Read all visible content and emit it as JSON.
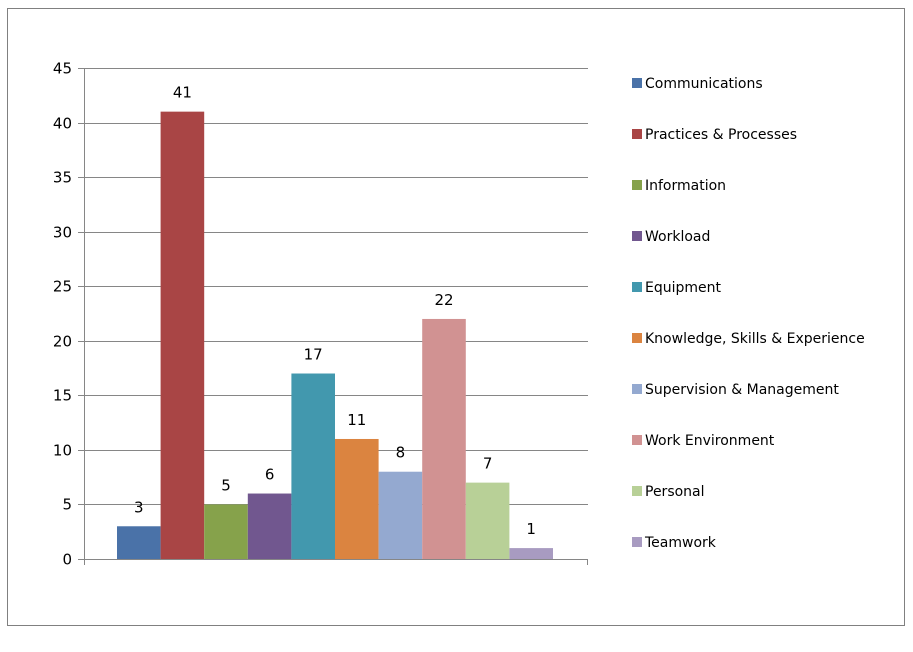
{
  "chart_data": {
    "type": "bar",
    "categories": [
      "Communications",
      "Practices & Processes",
      "Information",
      "Workload",
      "Equipment",
      "Knowledge, Skills & Experience",
      "Supervision & Management",
      "Work Environment",
      "Personal",
      "Teamwork"
    ],
    "values": [
      3,
      41,
      5,
      6,
      17,
      11,
      8,
      22,
      7,
      1
    ],
    "colors": [
      "#4a72a8",
      "#a94545",
      "#86a24b",
      "#71578f",
      "#4298ae",
      "#db8440",
      "#94a9d0",
      "#d19292",
      "#b8d097",
      "#a89bc1"
    ],
    "title": "",
    "xlabel": "",
    "ylabel": "",
    "ylim": [
      0,
      45
    ],
    "yticks": [
      0,
      5,
      10,
      15,
      20,
      25,
      30,
      35,
      40,
      45
    ],
    "grid": true,
    "legend_position": "right",
    "data_labels": true
  }
}
